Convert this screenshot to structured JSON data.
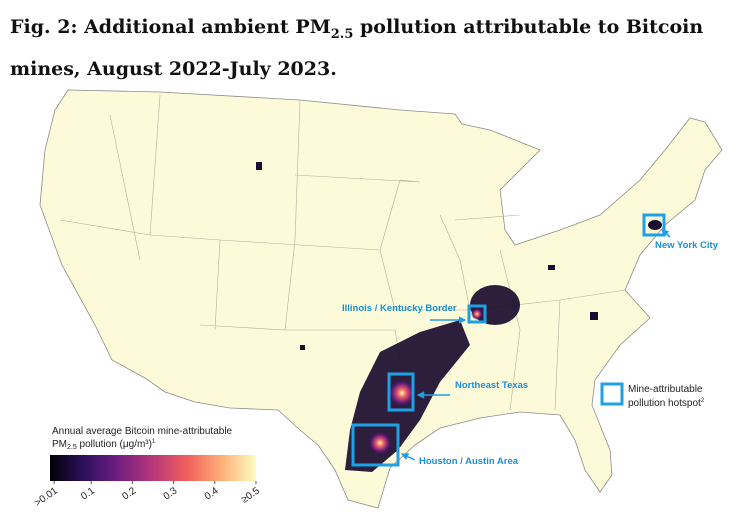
{
  "title": {
    "main": "Fig. 2: Additional ambient PM",
    "sub": "2.5",
    "rest": " pollution attributable to Bitcoin mines, August 2022-July 2023."
  },
  "annotations": {
    "illinois_kentucky": "Illinois / Kentucky Border",
    "northeast_texas": "Northeast Texas",
    "houston_austin": "Houston / Austin Area",
    "new_york_city": "New York City"
  },
  "legend": {
    "hotspot_line1": "Mine-attributable",
    "hotspot_line2": "pollution hotspot",
    "hotspot_note": "2"
  },
  "colorbar": {
    "title_line1": "Annual average Bitcoin mine-attributable",
    "title_pm": "PM",
    "title_sub": "2.5",
    "title_rest": " pollution (μg/m³)",
    "title_note": "1",
    "lim": [
      0,
      0.5
    ],
    "ticks": [
      {
        "value": 0.01,
        "label": ">0.01"
      },
      0.1,
      0.2,
      0.3,
      0.4,
      {
        "value": 0.5,
        "label": "≥0.5"
      }
    ],
    "colors": [
      "#000004",
      "#2c115f",
      "#721f81",
      "#b73779",
      "#f1605d",
      "#feb078",
      "#fcfdbf"
    ]
  }
}
